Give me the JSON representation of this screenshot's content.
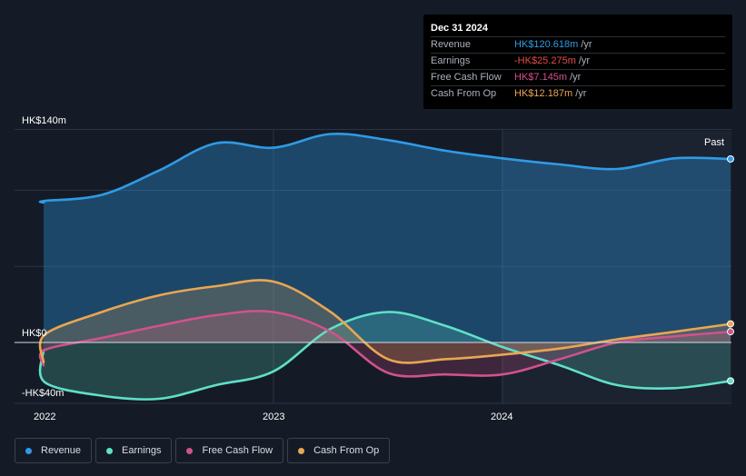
{
  "tooltip": {
    "date": "Dec 31 2024",
    "rows": [
      {
        "label": "Revenue",
        "value": "HK$120.618m",
        "unit": "/yr",
        "color": "#2f9be6"
      },
      {
        "label": "Earnings",
        "value": "-HK$25.275m",
        "unit": "/yr",
        "color": "#e84b4b"
      },
      {
        "label": "Free Cash Flow",
        "value": "HK$7.145m",
        "unit": "/yr",
        "color": "#d0528c"
      },
      {
        "label": "Cash From Op",
        "value": "HK$12.187m",
        "unit": "/yr",
        "color": "#e9a653"
      }
    ]
  },
  "legend": [
    {
      "label": "Revenue",
      "color": "#2f9be6"
    },
    {
      "label": "Earnings",
      "color": "#5fe0c9"
    },
    {
      "label": "Free Cash Flow",
      "color": "#d0528c"
    },
    {
      "label": "Cash From Op",
      "color": "#e9a653"
    }
  ],
  "chart_data": {
    "type": "area",
    "y_unit": "HK$ m",
    "ylim": [
      -40,
      140
    ],
    "y_tick_labels": [
      "HK$140m",
      "HK$0",
      "-HK$40m"
    ],
    "x_tick_labels": [
      "2022",
      "2023",
      "2024"
    ],
    "past_label": "Past",
    "x": [
      2021.75,
      2022.0,
      2022.25,
      2022.5,
      2022.75,
      2023.0,
      2023.25,
      2023.5,
      2023.75,
      2024.0,
      2024.25,
      2024.5,
      2024.75,
      2025.0
    ],
    "series": [
      {
        "name": "Revenue",
        "color": "#2f9be6",
        "values": [
          92,
          93,
          97,
          113,
          131,
          128,
          137,
          133,
          126,
          121,
          117,
          114,
          121,
          120.6
        ]
      },
      {
        "name": "Earnings",
        "color": "#5fe0c9",
        "values": [
          -5,
          -26,
          -35,
          -37,
          -28,
          -19,
          9,
          20,
          11,
          -3,
          -15,
          -28,
          -30,
          -25.3
        ]
      },
      {
        "name": "Free Cash Flow",
        "color": "#d0528c",
        "values": [
          -15,
          -5,
          3,
          11,
          18,
          20,
          7,
          -20,
          -21,
          -21,
          -11,
          0,
          4,
          7.1
        ]
      },
      {
        "name": "Cash From Op",
        "color": "#e9a653",
        "values": [
          -13,
          5,
          20,
          31,
          37,
          40,
          20,
          -11,
          -11,
          -8,
          -4,
          2,
          7,
          12.2
        ]
      }
    ]
  }
}
